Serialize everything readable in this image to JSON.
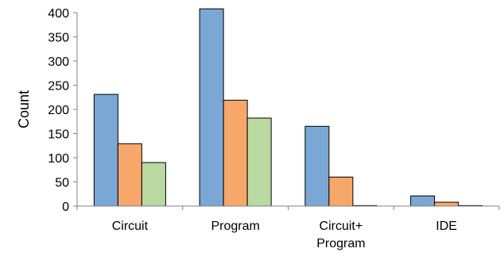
{
  "chart_data": {
    "type": "bar",
    "title": "",
    "xlabel": "",
    "ylabel": "Count",
    "ylim": [
      0,
      400
    ],
    "yticks": [
      "0",
      "50",
      "100",
      "150",
      "200",
      "250",
      "300",
      "350",
      "400"
    ],
    "grid": false,
    "legend": "none",
    "categories": [
      [
        "Circuit"
      ],
      [
        "Program"
      ],
      [
        "Circuit+",
        "Program"
      ],
      [
        "IDE"
      ]
    ],
    "series": [
      {
        "color": "#7ba7d4",
        "values": [
          231,
          408,
          165,
          21
        ]
      },
      {
        "color": "#f8a76b",
        "values": [
          129,
          219,
          60,
          8
        ]
      },
      {
        "color": "#b9d9a1",
        "values": [
          90,
          182,
          1,
          1
        ]
      }
    ]
  }
}
